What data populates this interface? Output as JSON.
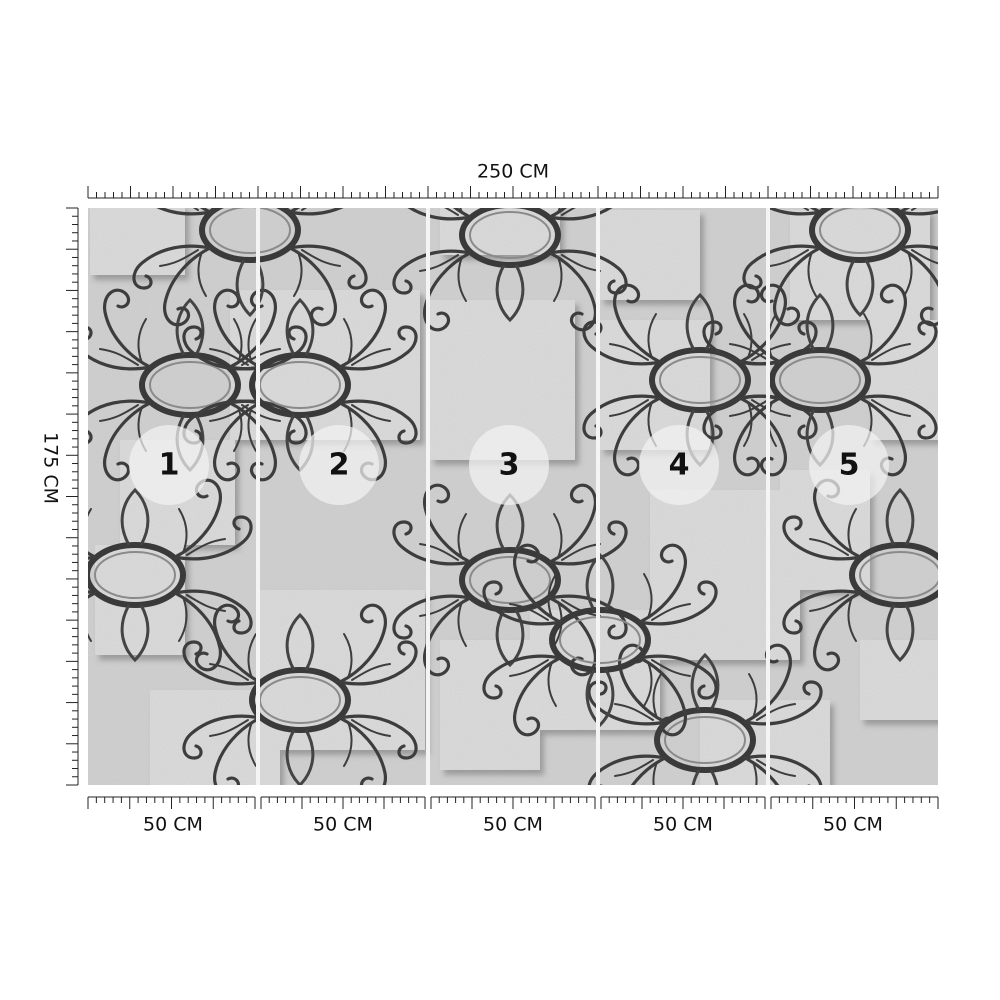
{
  "dimensions": {
    "width": "250 CM",
    "height": "175 CM"
  },
  "panels": [
    {
      "number": "1",
      "width": "50 CM"
    },
    {
      "number": "2",
      "width": "50 CM"
    },
    {
      "number": "3",
      "width": "50 CM"
    },
    {
      "number": "4",
      "width": "50 CM"
    },
    {
      "number": "5",
      "width": "50 CM"
    }
  ]
}
